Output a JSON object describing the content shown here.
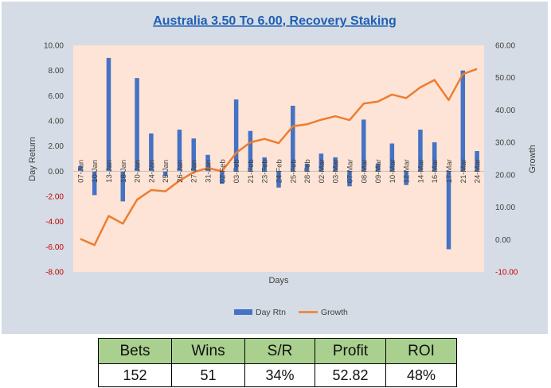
{
  "chart_data": {
    "type": "bar+line",
    "title": "Australia 3.50 To 6.00, Recovery Staking",
    "xlabel": "Days",
    "ylabel_left": "Day Return",
    "ylabel_right": "Growth",
    "y_left": {
      "min": -8,
      "max": 10,
      "step": 2,
      "tick_labels": [
        "-8.00",
        "-6.00",
        "-4.00",
        "-2.00",
        "0.00",
        "2.00",
        "4.00",
        "6.00",
        "8.00",
        "10.00"
      ]
    },
    "y_right": {
      "min": -10,
      "max": 60,
      "step": 10,
      "tick_labels": [
        "-10.00",
        "0.00",
        "10.00",
        "20.00",
        "30.00",
        "40.00",
        "50.00",
        "60.00"
      ]
    },
    "categories": [
      "07-Jan",
      "10-Jan",
      "13-Jan",
      "18-Jan",
      "20-Jan",
      "24-Jan",
      "25-Jan",
      "26-Jan",
      "27-Jan",
      "31-Jan",
      "02-Feb",
      "03-Feb",
      "21-Feb",
      "23-Feb",
      "24-Feb",
      "25-Feb",
      "28-Feb",
      "02-Mar",
      "03-Mar",
      "07-Mar",
      "08-Mar",
      "09-Mar",
      "10-Mar",
      "12-Mar",
      "14-Mar",
      "16-Mar",
      "17-Mar",
      "21-Mar",
      "24-Mar"
    ],
    "series": [
      {
        "name": "Day Rtn",
        "type": "bar",
        "axis": "left",
        "color": "#4472c4",
        "values": [
          0.4,
          -1.9,
          9.0,
          -2.4,
          7.4,
          3.0,
          -0.4,
          3.3,
          2.6,
          1.3,
          -1.0,
          5.7,
          3.2,
          1.1,
          -1.3,
          5.2,
          0.6,
          1.4,
          1.1,
          -1.2,
          4.1,
          0.6,
          2.2,
          -1.1,
          3.3,
          2.3,
          -6.2,
          8.0,
          1.6
        ]
      },
      {
        "name": "Growth",
        "type": "line",
        "axis": "right",
        "color": "#ed7d31",
        "values": [
          0.2,
          -1.7,
          7.3,
          4.9,
          12.3,
          15.3,
          14.9,
          18.2,
          20.8,
          22.1,
          21.1,
          26.8,
          30.0,
          31.1,
          29.8,
          35.0,
          35.6,
          37.0,
          38.1,
          36.9,
          42.0,
          42.6,
          44.8,
          43.7,
          47.0,
          49.3,
          43.1,
          51.1,
          52.7
        ]
      }
    ],
    "legend_position": "bottom",
    "grid": false
  },
  "stats": {
    "headers": [
      "Bets",
      "Wins",
      "S/R",
      "Profit",
      "ROI"
    ],
    "values": [
      "152",
      "51",
      "34%",
      "52.82",
      "48%"
    ]
  }
}
